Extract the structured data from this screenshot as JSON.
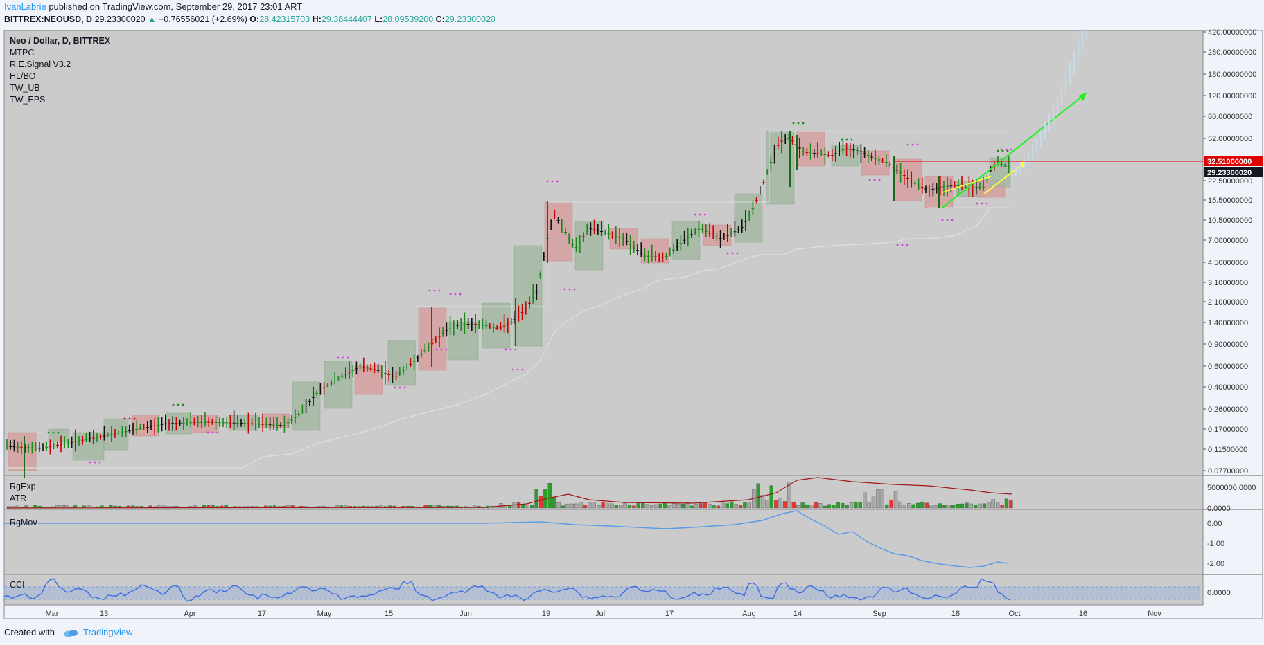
{
  "header": {
    "author": "IvanLabrie",
    "published_text": " published on TradingView.com, September 29, 2017 23:01 ART"
  },
  "ticker": {
    "symbol": "BITTREX:NEOUSD, D",
    "last": "29.23300020",
    "change": "+0.76556021 (+2.69%)",
    "o_label": "O:",
    "o": "28.42315703",
    "h_label": "H:",
    "h": "29.38444407",
    "l_label": "L:",
    "l": "28.09539200",
    "c_label": "C:",
    "c": "29.23300020"
  },
  "indicators": [
    "Neo / Dollar, D, BITTREX",
    "MTPC",
    "R.E.Signal V3.2",
    "HL/BO",
    "TW_UB",
    "TW_EPS"
  ],
  "panes": {
    "volume": [
      "RgExp",
      "ATR"
    ],
    "rgmov": "RgMov",
    "cci": "CCI"
  },
  "price_axis": [
    "420.00000000",
    "280.00000000",
    "180.00000000",
    "120.00000000",
    "80.00000000",
    "52.00000000",
    "22.50000000",
    "15.50000000",
    "10.50000000",
    "7.00000000",
    "4.50000000",
    "3.10000000",
    "2.10000000",
    "1.40000000",
    "0.90000000",
    "0.60000000",
    "0.40000000",
    "0.26000000",
    "0.17000000",
    "0.11500000",
    "0.07700000"
  ],
  "price_marks": {
    "red": "32.51000000",
    "black": "29.23300020"
  },
  "volume_axis": [
    "5000000.0000",
    "0.0000"
  ],
  "rgmov_axis": [
    "0.00",
    "-1.00",
    "-2.00"
  ],
  "cci_axis": [
    "0.0000"
  ],
  "time_axis": [
    "Mar",
    "13",
    "Apr",
    "17",
    "May",
    "15",
    "Jun",
    "19",
    "Jul",
    "17",
    "Aug",
    "14",
    "Sep",
    "18",
    "Oct",
    "16",
    "Nov"
  ],
  "footer": {
    "created": "Created with",
    "brand": "TradingView"
  },
  "colors": {
    "up": "#1a8a1a",
    "down": "#cc0000",
    "accent": "#2196f3",
    "line": "#5b93e6",
    "background": "#cbcbcb"
  }
}
